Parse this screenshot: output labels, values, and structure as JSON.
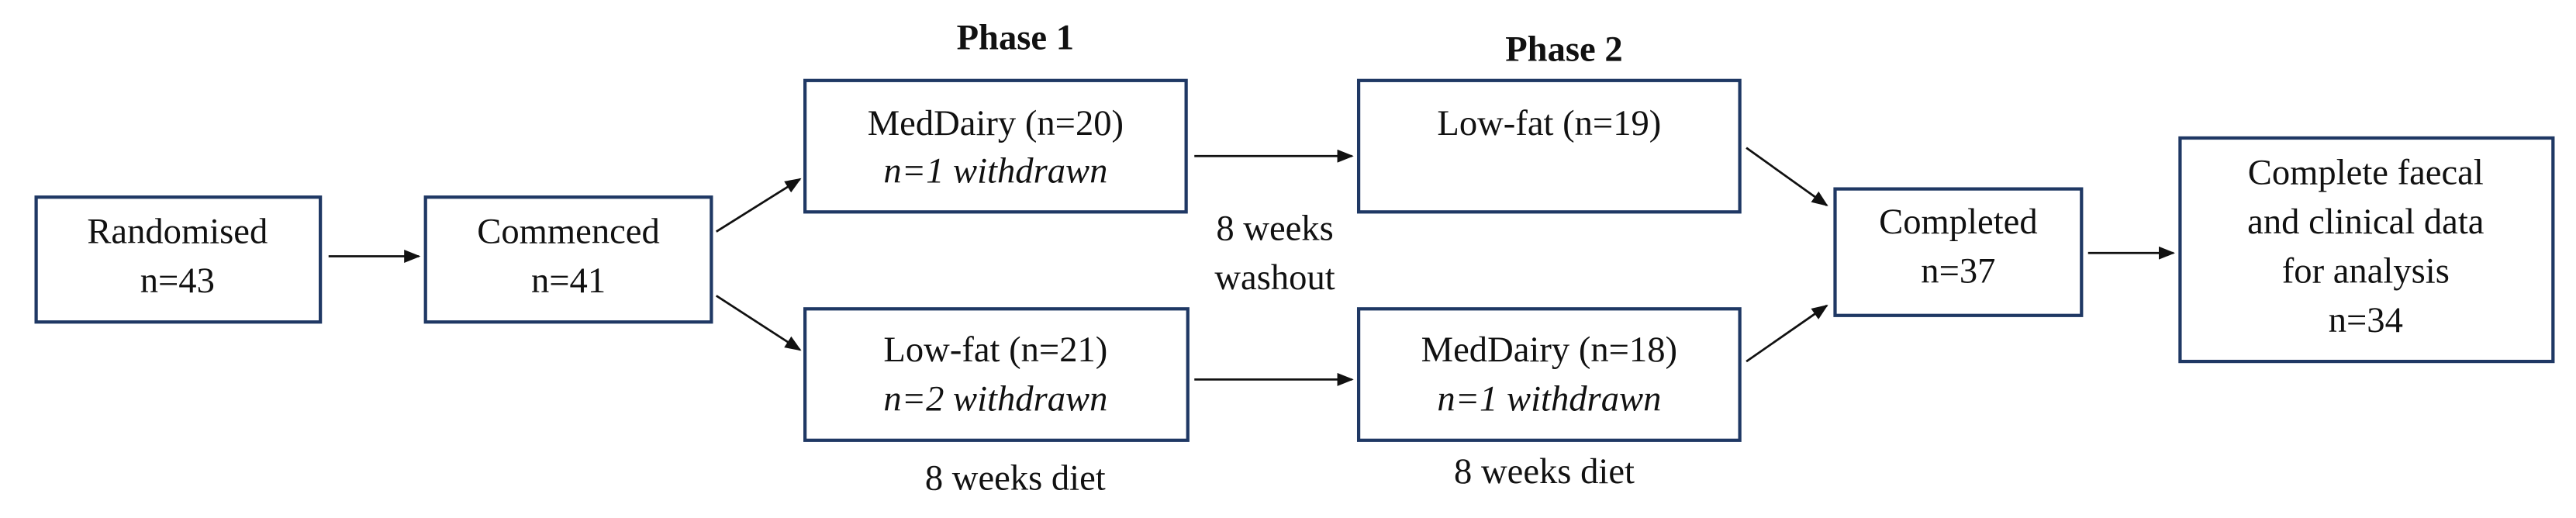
{
  "phases": [
    "Phase 1",
    "Phase 2"
  ],
  "nodes": [
    {
      "lines": [
        "Randomised",
        "n=43"
      ]
    },
    {
      "lines": [
        "Commenced",
        "n=41"
      ]
    },
    {
      "lines": [
        "MedDairy (n=20)"
      ],
      "note": "n=1 withdrawn"
    },
    {
      "lines": [
        "Low-fat (n=21)"
      ],
      "note": "n=2 withdrawn"
    },
    {
      "lines": [
        "Low-fat (n=19)"
      ]
    },
    {
      "lines": [
        "MedDairy (n=18)"
      ],
      "note": "n=1 withdrawn"
    },
    {
      "lines": [
        "Completed",
        "n=37"
      ]
    },
    {
      "lines": [
        "Complete faecal",
        "and clinical data",
        "for analysis",
        "n=34"
      ]
    }
  ],
  "annotations": {
    "washout": [
      "8 weeks",
      "washout"
    ],
    "diet_phase_1": "8 weeks diet",
    "diet_phase_2": "8 weeks diet"
  }
}
